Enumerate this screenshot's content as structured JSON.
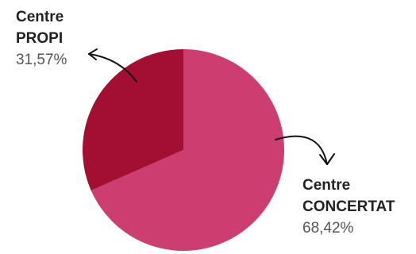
{
  "chart_data": {
    "type": "pie",
    "slices": [
      {
        "label_line1": "Centre",
        "label_line2": "CONCERTAT",
        "value": 68.42,
        "value_label": "68,42%",
        "color": "#cc3d70"
      },
      {
        "label_line1": "Centre",
        "label_line2": "PROPI",
        "value": 31.57,
        "value_label": "31,57%",
        "color": "#a30f33"
      }
    ],
    "start_angle": "12 o'clock, clockwise",
    "legend": "none; labels placed beside slices with hand-drawn arrows"
  }
}
